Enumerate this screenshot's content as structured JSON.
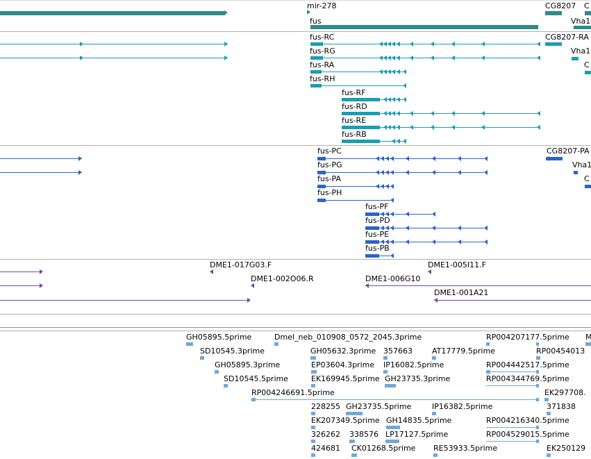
{
  "colors": {
    "gene": "#2f8a8a",
    "transcript_fb": "#1a9db5",
    "transcript_ens": "#2c63c8",
    "bac": "#6f4aa8",
    "est": "#6fa8d8",
    "divider": "#b0b0b0"
  },
  "labels": {
    "gene": [
      "mir-278",
      "CG8207",
      "C",
      "fus",
      "Vha1"
    ],
    "fb_transcripts": [
      "fus-RC",
      "CG8207-RA",
      "fus-RG",
      "Vha1",
      "fus-RA",
      "C",
      "fus-RH",
      "fus-RF",
      "fus-RD",
      "fus-RE",
      "fus-RB"
    ],
    "ens_transcripts": [
      "fus-PC",
      "CG8207-PA",
      "fus-PG",
      "Vha1",
      "fus-PA",
      "C",
      "fus-PH",
      "fus-PF",
      "fus-PD",
      "fus-PE",
      "fus-PB"
    ],
    "bac": [
      "DME1-017G03.F",
      "DME1-005I11.F",
      "DME1-002O06.R",
      "DME1-006G10",
      "DME1-001A21"
    ],
    "est": [
      "GH05895.5prime",
      "Dmel_neb_010908_0572_2045.3prime",
      "RP004207177.5prime",
      "M",
      "SD10545.3prime",
      "GH05632.3prime",
      "357663",
      "AT17779.5prime",
      "RP00454013",
      "GH05895.3prime",
      "EP03604.3prime",
      "IP16082.5prime",
      "RP004442517.5prime",
      "SD10545.5prime",
      "EK169945.5prime",
      "GH23735.3prime",
      "RP004344769.5prime",
      "RP004246691.5prime",
      "EK297708.",
      "228255",
      "GH23735.5prime",
      "IP16382.5prime",
      "371838",
      "EK207349.5prime",
      "GH14835.5prime",
      "RP004216340.5prime",
      "326262",
      "338576",
      "LP17127.5prime",
      "RP004529015.5prime",
      "424681",
      "CK01268.5prime",
      "RE53933.5prime",
      "EK250129"
    ]
  }
}
